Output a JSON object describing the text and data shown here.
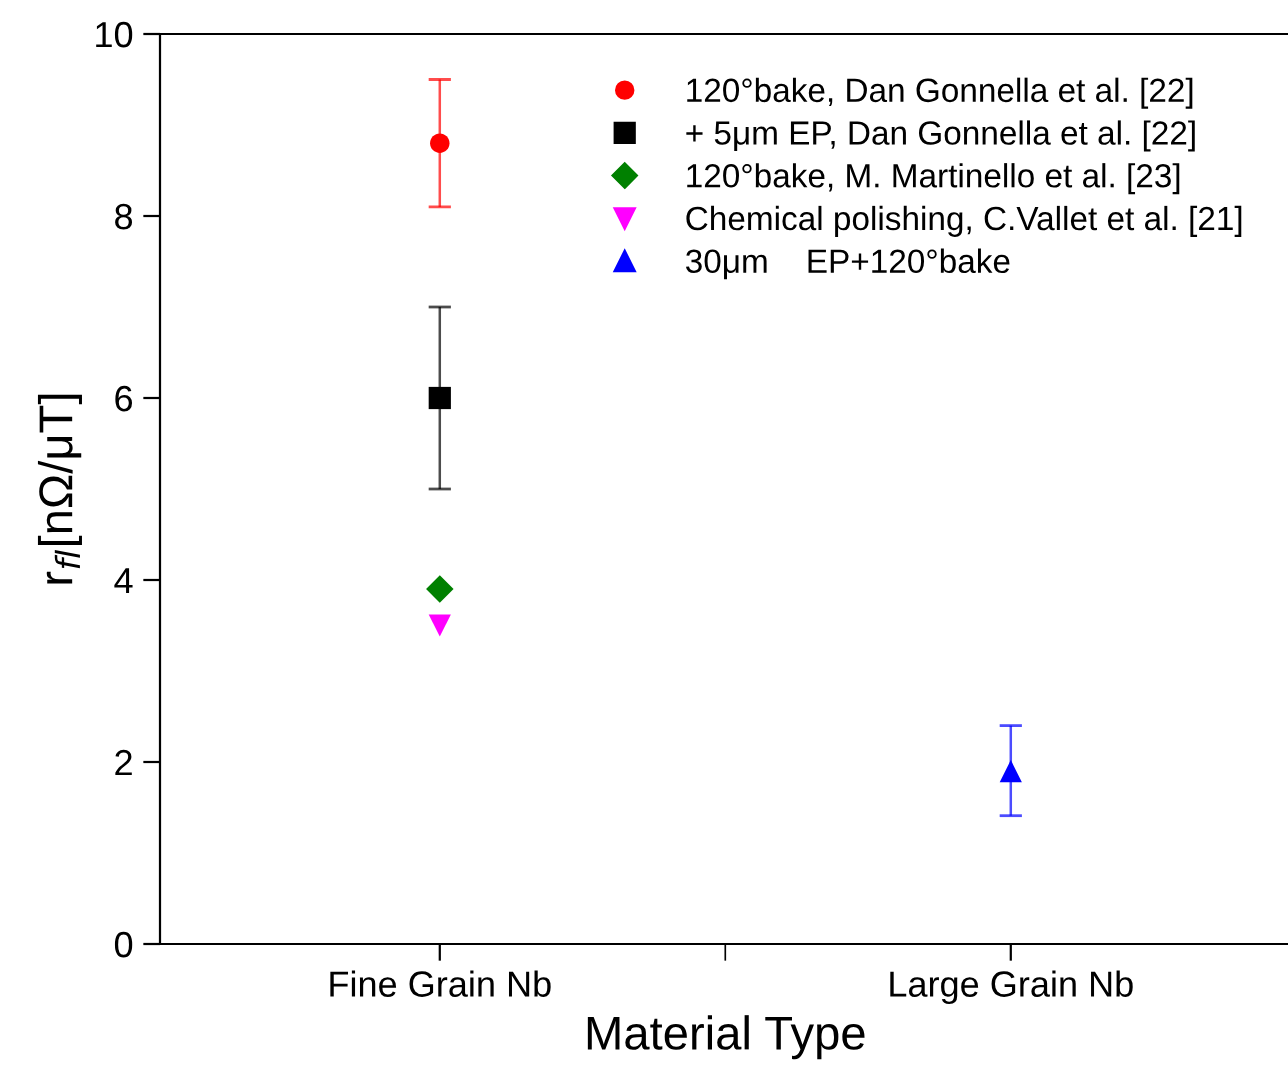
{
  "chart_data": {
    "type": "scatter",
    "xlabel": "Material Type",
    "ylabel": "r$_{fl}$[nΩ/μT]",
    "categories": [
      "Fine Grain Nb",
      "Large Grain Nb"
    ],
    "ylim": [
      0,
      10
    ],
    "yticks": [
      0,
      2,
      4,
      6,
      8,
      10
    ],
    "grid": false,
    "legend": "top right",
    "series": [
      {
        "name": "120°bake, Dan Gonnella et al. [22]",
        "color": "#ff0000",
        "marker": "circle",
        "values": [
          8.8,
          null
        ],
        "errors": [
          [
            8.1,
            9.5
          ],
          null
        ]
      },
      {
        "name": "+ 5μm EP, Dan Gonnella et al. [22]",
        "color": "#000000",
        "marker": "square",
        "values": [
          6,
          null
        ],
        "errors": [
          [
            5,
            7
          ],
          null
        ]
      },
      {
        "name": "120°bake, M. Martinello et al. [23]",
        "color": "#008000",
        "marker": "diamond",
        "values": [
          3.9,
          null
        ]
      },
      {
        "name": "Chemical polishing, C.Vallet et al. [21]",
        "color": "#ff00ff",
        "marker": "triangle_down",
        "values": [
          3.5,
          null
        ]
      },
      {
        "name": "30μm    EP+120°bake",
        "color": "#0000ff",
        "marker": "triangle",
        "values": [
          null,
          1.9
        ],
        "errors": [
          null,
          [
            1.41,
            2.4
          ]
        ]
      }
    ]
  }
}
